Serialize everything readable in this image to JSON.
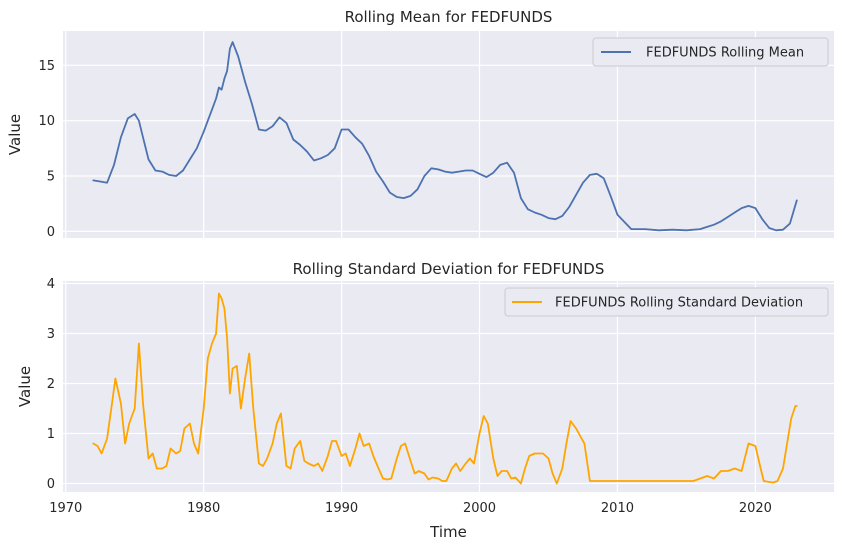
{
  "chart_data": [
    {
      "type": "line",
      "title": "Rolling Mean for FEDFUNDS",
      "xlabel": "",
      "ylabel": "Value",
      "xlim": [
        1969.8,
        2025.7
      ],
      "ylim": [
        -0.6,
        18.1
      ],
      "yticks": [
        0,
        5,
        10,
        15
      ],
      "xticks": [
        1970,
        1980,
        1990,
        2000,
        2010,
        2020
      ],
      "show_xtick_labels": false,
      "grid": true,
      "legend": "upper right",
      "series": [
        {
          "name": "FEDFUNDS Rolling Mean",
          "color": "#4c72b0",
          "x": [
            1972.0,
            1972.5,
            1973.0,
            1973.5,
            1974.0,
            1974.5,
            1975.0,
            1975.3,
            1975.6,
            1976.0,
            1976.5,
            1977.0,
            1977.5,
            1978.0,
            1978.5,
            1979.0,
            1979.5,
            1980.0,
            1980.3,
            1980.6,
            1980.9,
            1981.1,
            1981.3,
            1981.5,
            1981.7,
            1981.9,
            1982.1,
            1982.5,
            1983.0,
            1983.5,
            1984.0,
            1984.5,
            1985.0,
            1985.5,
            1986.0,
            1986.5,
            1987.0,
            1987.5,
            1988.0,
            1988.5,
            1989.0,
            1989.5,
            1990.0,
            1990.5,
            1991.0,
            1991.5,
            1992.0,
            1992.5,
            1993.0,
            1993.5,
            1994.0,
            1994.5,
            1995.0,
            1995.5,
            1996.0,
            1996.5,
            1997.0,
            1997.5,
            1998.0,
            1998.5,
            1999.0,
            1999.5,
            2000.0,
            2000.5,
            2001.0,
            2001.5,
            2002.0,
            2002.5,
            2003.0,
            2003.5,
            2004.0,
            2004.5,
            2005.0,
            2005.5,
            2006.0,
            2006.5,
            2007.0,
            2007.5,
            2008.0,
            2008.5,
            2009.0,
            2009.5,
            2010.0,
            2011.0,
            2012.0,
            2013.0,
            2014.0,
            2015.0,
            2016.0,
            2016.5,
            2017.0,
            2017.5,
            2018.0,
            2018.5,
            2019.0,
            2019.5,
            2020.0,
            2020.5,
            2021.0,
            2021.5,
            2022.0,
            2022.5,
            2023.0
          ],
          "values": [
            4.6,
            4.5,
            4.4,
            6.0,
            8.5,
            10.2,
            10.6,
            10.0,
            8.5,
            6.5,
            5.5,
            5.4,
            5.1,
            5.0,
            5.5,
            6.5,
            7.5,
            9.0,
            10.0,
            11.0,
            12.0,
            13.0,
            12.8,
            13.8,
            14.5,
            16.5,
            17.1,
            15.8,
            13.5,
            11.5,
            9.2,
            9.1,
            9.5,
            10.3,
            9.8,
            8.3,
            7.8,
            7.2,
            6.4,
            6.6,
            6.9,
            7.5,
            9.2,
            9.2,
            8.5,
            7.9,
            6.8,
            5.4,
            4.5,
            3.5,
            3.1,
            3.0,
            3.2,
            3.8,
            5.0,
            5.7,
            5.6,
            5.4,
            5.3,
            5.4,
            5.5,
            5.5,
            5.2,
            4.9,
            5.3,
            6.0,
            6.2,
            5.3,
            3.0,
            2.0,
            1.7,
            1.5,
            1.2,
            1.1,
            1.4,
            2.2,
            3.3,
            4.4,
            5.1,
            5.2,
            4.8,
            3.2,
            1.5,
            0.2,
            0.2,
            0.1,
            0.15,
            0.1,
            0.2,
            0.4,
            0.6,
            0.9,
            1.3,
            1.7,
            2.1,
            2.3,
            2.1,
            1.1,
            0.3,
            0.1,
            0.15,
            0.7,
            2.8
          ]
        }
      ]
    },
    {
      "type": "line",
      "title": "Rolling Standard Deviation for FEDFUNDS",
      "xlabel": "Time",
      "ylabel": "Value",
      "xlim": [
        1969.8,
        2025.7
      ],
      "ylim": [
        -0.17,
        4.05
      ],
      "yticks": [
        0,
        1,
        2,
        3,
        4
      ],
      "xticks": [
        1970,
        1980,
        1990,
        2000,
        2010,
        2020
      ],
      "show_xtick_labels": true,
      "grid": true,
      "legend": "upper right",
      "series": [
        {
          "name": "FEDFUNDS Rolling Standard Deviation",
          "color": "#ffa500",
          "x": [
            1972.0,
            1972.3,
            1972.6,
            1973.0,
            1973.3,
            1973.6,
            1974.0,
            1974.3,
            1974.6,
            1975.0,
            1975.3,
            1975.6,
            1976.0,
            1976.3,
            1976.6,
            1977.0,
            1977.3,
            1977.6,
            1978.0,
            1978.3,
            1978.6,
            1979.0,
            1979.3,
            1979.6,
            1980.0,
            1980.3,
            1980.6,
            1980.9,
            1981.1,
            1981.3,
            1981.5,
            1981.7,
            1981.9,
            1982.1,
            1982.4,
            1982.7,
            1983.0,
            1983.3,
            1983.6,
            1984.0,
            1984.3,
            1984.6,
            1985.0,
            1985.3,
            1985.6,
            1986.0,
            1986.3,
            1986.6,
            1987.0,
            1987.3,
            1987.6,
            1988.0,
            1988.3,
            1988.6,
            1989.0,
            1989.3,
            1989.6,
            1990.0,
            1990.3,
            1990.6,
            1991.0,
            1991.3,
            1991.6,
            1992.0,
            1992.3,
            1992.6,
            1993.0,
            1993.3,
            1993.6,
            1994.0,
            1994.3,
            1994.6,
            1995.0,
            1995.3,
            1995.6,
            1996.0,
            1996.3,
            1996.6,
            1997.0,
            1997.3,
            1997.6,
            1998.0,
            1998.3,
            1998.6,
            1999.0,
            1999.3,
            1999.6,
            2000.0,
            2000.3,
            2000.6,
            2001.0,
            2001.3,
            2001.6,
            2002.0,
            2002.3,
            2002.6,
            2003.0,
            2003.3,
            2003.6,
            2004.0,
            2004.3,
            2004.6,
            2005.0,
            2005.3,
            2005.6,
            2006.0,
            2006.3,
            2006.6,
            2007.0,
            2007.3,
            2007.6,
            2008.0,
            2008.3,
            2008.6,
            2009.0,
            2009.3,
            2009.6,
            2010.0,
            2010.5,
            2011.0,
            2011.5,
            2012.0,
            2012.5,
            2013.0,
            2013.5,
            2014.0,
            2014.5,
            2015.0,
            2015.5,
            2016.0,
            2016.5,
            2017.0,
            2017.5,
            2018.0,
            2018.5,
            2019.0,
            2019.5,
            2020.0,
            2020.3,
            2020.6,
            2021.0,
            2021.3,
            2021.6,
            2022.0,
            2022.3,
            2022.6,
            2022.9,
            2023.0
          ],
          "values": [
            0.8,
            0.75,
            0.6,
            0.9,
            1.5,
            2.1,
            1.6,
            0.8,
            1.2,
            1.5,
            2.8,
            1.6,
            0.5,
            0.6,
            0.3,
            0.3,
            0.35,
            0.7,
            0.6,
            0.65,
            1.1,
            1.2,
            0.8,
            0.6,
            1.5,
            2.5,
            2.8,
            3.0,
            3.8,
            3.7,
            3.5,
            2.9,
            1.8,
            2.3,
            2.35,
            1.5,
            2.1,
            2.6,
            1.5,
            0.4,
            0.35,
            0.5,
            0.8,
            1.2,
            1.4,
            0.35,
            0.3,
            0.7,
            0.85,
            0.45,
            0.4,
            0.35,
            0.4,
            0.25,
            0.55,
            0.85,
            0.85,
            0.55,
            0.6,
            0.35,
            0.7,
            1.0,
            0.75,
            0.8,
            0.55,
            0.35,
            0.1,
            0.08,
            0.1,
            0.5,
            0.75,
            0.8,
            0.45,
            0.2,
            0.25,
            0.2,
            0.08,
            0.12,
            0.1,
            0.05,
            0.05,
            0.3,
            0.4,
            0.25,
            0.4,
            0.5,
            0.4,
            1.0,
            1.35,
            1.2,
            0.5,
            0.15,
            0.25,
            0.25,
            0.1,
            0.12,
            0.0,
            0.3,
            0.55,
            0.6,
            0.6,
            0.6,
            0.5,
            0.2,
            0.0,
            0.3,
            0.8,
            1.25,
            1.1,
            0.95,
            0.8,
            0.05,
            0.05,
            0.05,
            0.05,
            0.05,
            0.05,
            0.05,
            0.05,
            0.05,
            0.05,
            0.05,
            0.05,
            0.05,
            0.05,
            0.05,
            0.05,
            0.05,
            0.05,
            0.1,
            0.15,
            0.1,
            0.25,
            0.25,
            0.3,
            0.25,
            0.8,
            0.75,
            0.4,
            0.05,
            0.03,
            0.02,
            0.05,
            0.3,
            0.8,
            1.3,
            1.55,
            1.55
          ]
        }
      ]
    }
  ]
}
